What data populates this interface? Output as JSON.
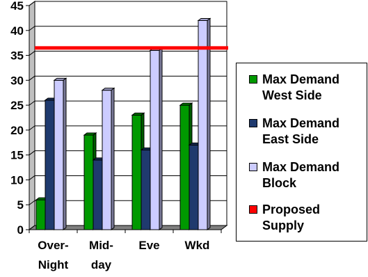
{
  "chart_data": {
    "type": "bar",
    "categories": [
      "Over-\nNight",
      "Mid-\nday",
      "Eve",
      "Wkd"
    ],
    "series": [
      {
        "name": "Max Demand West Side",
        "label": "Max Demand\nWest Side",
        "color": "#009900",
        "values": [
          6,
          19,
          23,
          25
        ]
      },
      {
        "name": "Max Demand East Side",
        "label": "Max Demand\nEast Side",
        "color": "#1f3a6e",
        "values": [
          26,
          14,
          16,
          17
        ]
      },
      {
        "name": "Max Demand Block",
        "label": "Max Demand\nBlock",
        "color": "#ccccff",
        "values": [
          30,
          28,
          36,
          42
        ]
      }
    ],
    "reference_line": {
      "name": "Proposed Supply",
      "label": "Proposed\nSupply",
      "color": "#ff0000",
      "value": 36.5
    },
    "yticks": [
      0,
      5,
      10,
      15,
      20,
      25,
      30,
      35,
      40,
      45
    ],
    "ylim": [
      0,
      45
    ],
    "grid": true,
    "legend": "right",
    "title": "",
    "xlabel": "",
    "ylabel": ""
  }
}
